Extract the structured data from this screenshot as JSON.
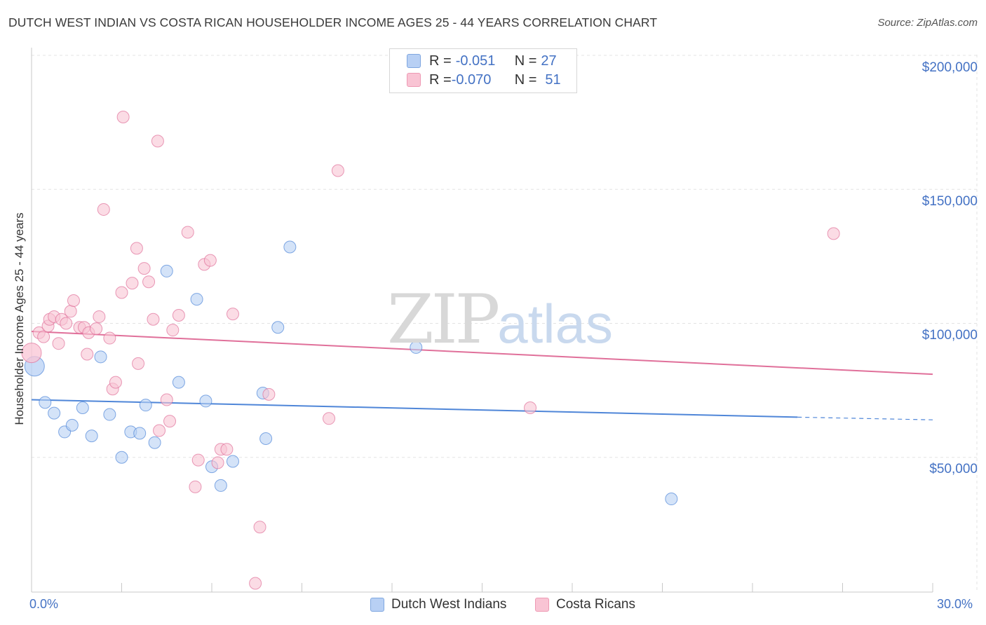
{
  "title": "DUTCH WEST INDIAN VS COSTA RICAN HOUSEHOLDER INCOME AGES 25 - 44 YEARS CORRELATION CHART",
  "source": "Source: ZipAtlas.com",
  "watermark": {
    "zip": "ZIP",
    "atlas": "atlas"
  },
  "legend_top": {
    "rows": [
      {
        "r_label": "R = ",
        "r_value": "-0.051",
        "n_label": "N = ",
        "n_value": "27",
        "color": "#4f86d8"
      },
      {
        "r_label": "R = ",
        "r_value": "-0.070",
        "n_label": "N = ",
        "n_value": "51",
        "color": "#e0709a"
      }
    ]
  },
  "legend_bottom": {
    "series1": "Dutch West Indians",
    "series2": "Costa Ricans"
  },
  "chart_data": {
    "type": "scatter",
    "title": "DUTCH WEST INDIAN VS COSTA RICAN HOUSEHOLDER INCOME AGES 25 - 44 YEARS CORRELATION CHART",
    "xlabel": "",
    "ylabel": "Householder Income Ages 25 - 44 years",
    "xlim": [
      0,
      30
    ],
    "ylim": [
      0,
      200000
    ],
    "x_tick_labels": [
      "0.0%",
      "30.0%"
    ],
    "y_ticks": [
      {
        "value": 50000,
        "label": "$50,000"
      },
      {
        "value": 100000,
        "label": "$100,000"
      },
      {
        "value": 150000,
        "label": "$150,000"
      },
      {
        "value": 200000,
        "label": "$200,000"
      }
    ],
    "grid": true,
    "series": [
      {
        "name": "Dutch West Indians",
        "color": "#4f86d8",
        "fill": "#b8d0f4",
        "trend": {
          "x": [
            0,
            25.5
          ],
          "y": [
            71500,
            65000
          ],
          "dashed_to": [
            30,
            64000
          ]
        },
        "points": [
          [
            0.1,
            84000
          ],
          [
            0.45,
            70500
          ],
          [
            0.75,
            66500
          ],
          [
            1.1,
            59500
          ],
          [
            1.35,
            62000
          ],
          [
            1.7,
            68500
          ],
          [
            2.0,
            58000
          ],
          [
            2.3,
            87500
          ],
          [
            2.6,
            66000
          ],
          [
            3.0,
            50000
          ],
          [
            3.3,
            59500
          ],
          [
            3.6,
            59000
          ],
          [
            3.8,
            69500
          ],
          [
            4.1,
            55500
          ],
          [
            4.5,
            119500
          ],
          [
            4.9,
            78000
          ],
          [
            5.5,
            109000
          ],
          [
            5.8,
            71000
          ],
          [
            6.0,
            46500
          ],
          [
            6.3,
            39500
          ],
          [
            6.7,
            48500
          ],
          [
            7.7,
            74000
          ],
          [
            7.8,
            57000
          ],
          [
            8.2,
            98500
          ],
          [
            8.6,
            128500
          ],
          [
            12.8,
            91000
          ],
          [
            21.3,
            34500
          ]
        ]
      },
      {
        "name": "Costa Ricans",
        "color": "#e0709a",
        "fill": "#f9c4d4",
        "trend": {
          "x": [
            0,
            30
          ],
          "y": [
            97000,
            81000
          ]
        },
        "points": [
          [
            0.0,
            89000
          ],
          [
            0.25,
            96500
          ],
          [
            0.4,
            95000
          ],
          [
            0.55,
            99000
          ],
          [
            0.6,
            101500
          ],
          [
            0.75,
            102500
          ],
          [
            0.9,
            92500
          ],
          [
            1.0,
            101500
          ],
          [
            1.15,
            100000
          ],
          [
            1.3,
            104500
          ],
          [
            1.4,
            108500
          ],
          [
            1.6,
            98500
          ],
          [
            1.75,
            98500
          ],
          [
            1.85,
            88500
          ],
          [
            1.9,
            96500
          ],
          [
            2.15,
            98000
          ],
          [
            2.25,
            102500
          ],
          [
            2.4,
            142500
          ],
          [
            2.6,
            94500
          ],
          [
            2.7,
            75500
          ],
          [
            2.8,
            78000
          ],
          [
            3.0,
            111500
          ],
          [
            3.05,
            177000
          ],
          [
            3.35,
            115000
          ],
          [
            3.5,
            128000
          ],
          [
            3.55,
            85000
          ],
          [
            3.75,
            120500
          ],
          [
            3.9,
            115500
          ],
          [
            4.05,
            101500
          ],
          [
            4.2,
            168000
          ],
          [
            4.25,
            60000
          ],
          [
            4.5,
            71500
          ],
          [
            4.6,
            63500
          ],
          [
            4.7,
            97500
          ],
          [
            4.9,
            103000
          ],
          [
            5.2,
            134000
          ],
          [
            5.45,
            39000
          ],
          [
            5.55,
            49000
          ],
          [
            5.75,
            122000
          ],
          [
            5.95,
            123500
          ],
          [
            6.2,
            48000
          ],
          [
            6.3,
            53000
          ],
          [
            6.5,
            53000
          ],
          [
            6.7,
            103500
          ],
          [
            7.45,
            3000
          ],
          [
            7.6,
            24000
          ],
          [
            7.9,
            73500
          ],
          [
            9.9,
            64500
          ],
          [
            10.2,
            157000
          ],
          [
            16.6,
            68500
          ],
          [
            26.7,
            133500
          ]
        ]
      }
    ]
  }
}
